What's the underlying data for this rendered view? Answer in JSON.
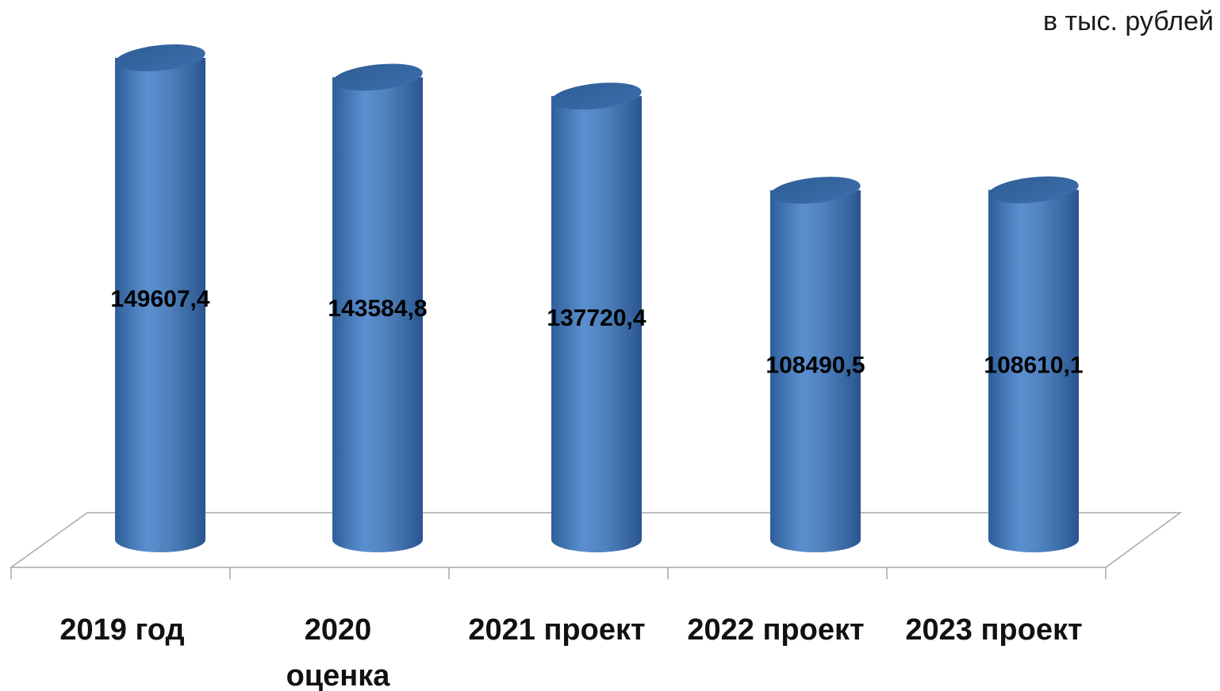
{
  "unit_label": "в тыс. рублей",
  "colors": {
    "bar": "#4F81BD",
    "bar_dark": "#2E5F99",
    "bar_top": "#3A6BA8"
  },
  "chart_data": {
    "type": "bar",
    "style": "3d-cylinder",
    "categories": [
      [
        "2019 год"
      ],
      [
        "2020",
        "оценка"
      ],
      [
        "2021 проект"
      ],
      [
        "2022 проект"
      ],
      [
        "2023 проект"
      ]
    ],
    "values": [
      149607.4,
      143584.8,
      137720.4,
      108490.5,
      108610.1
    ],
    "value_labels": [
      "149607,4",
      "143584,8",
      "137720,4",
      "108490,5",
      "108610,1"
    ],
    "grid": false,
    "legend": "none"
  }
}
